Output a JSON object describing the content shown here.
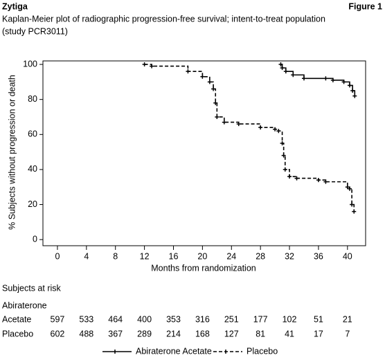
{
  "chart_data": {
    "type": "line",
    "header": "Zytiga",
    "figure_label": "Figure 1",
    "title_lines": [
      "Kaplan-Meier plot of radiographic progression-free survival; intent-to-treat population",
      "(study PCR3011)"
    ],
    "x_label": "Months from randomization",
    "y_label": "% Subjects without progression or death",
    "xlim": [
      -2,
      42.5
    ],
    "ylim": [
      -3.5,
      102
    ],
    "xticks": [
      0,
      4,
      8,
      12,
      16,
      20,
      24,
      28,
      32,
      36,
      40
    ],
    "yticks": [
      0,
      20,
      40,
      60,
      80,
      100
    ],
    "series": [
      {
        "name": "Abiraterone Acetate",
        "color": "#000000",
        "dash": "solid",
        "x": [
          30.8,
          31,
          31.5,
          32.5,
          34,
          37,
          38,
          39.5,
          40.3,
          40.7,
          41
        ],
        "values": [
          100,
          98,
          96,
          94,
          92,
          92,
          91,
          90,
          88,
          85,
          82
        ]
      },
      {
        "name": "Placebo",
        "color": "#000000",
        "dash": "dashed",
        "x": [
          12,
          13,
          18,
          20,
          21,
          21.5,
          21.8,
          22,
          23,
          25,
          28,
          30,
          30.5,
          31,
          31.2,
          31.4,
          32,
          33,
          36,
          37,
          40,
          40.3,
          40.6,
          40.9
        ],
        "values": [
          100,
          99,
          96,
          93,
          90,
          86,
          78,
          70,
          67,
          66,
          64,
          63,
          62,
          55,
          48,
          40,
          36,
          35,
          34,
          33,
          30,
          29,
          20,
          16
        ]
      }
    ],
    "risk_table": {
      "title": "Subjects at risk",
      "rows": [
        {
          "label_lines": [
            "Abiraterone",
            "Acetate"
          ],
          "values": [
            597,
            533,
            464,
            400,
            353,
            316,
            251,
            177,
            102,
            51,
            21
          ]
        },
        {
          "label_lines": [
            "Placebo"
          ],
          "values": [
            602,
            488,
            367,
            289,
            214,
            168,
            127,
            81,
            41,
            17,
            7
          ]
        }
      ]
    }
  }
}
